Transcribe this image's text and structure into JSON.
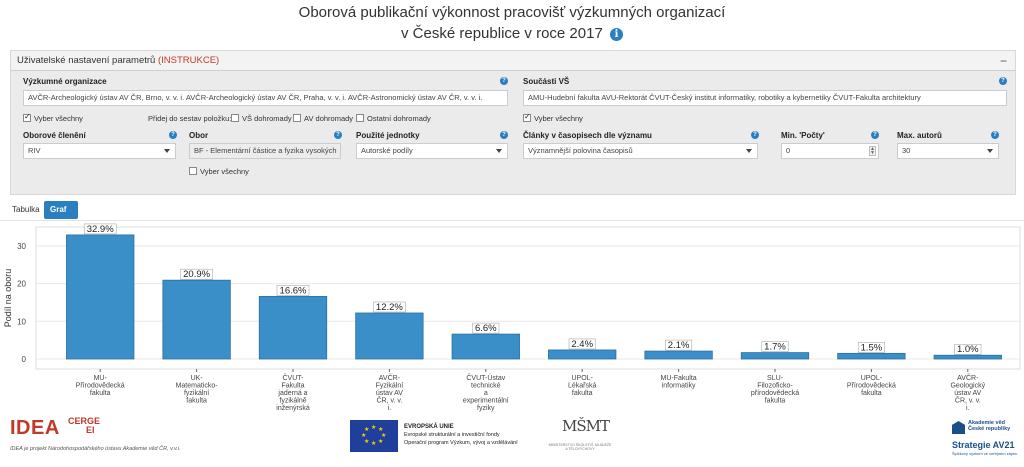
{
  "title": {
    "line1": "Oborová publikační výkonnost pracovišť výzkumných organizací",
    "line2": "v České republice v roce 2017"
  },
  "settings": {
    "header_label": "Uživatelské nastavení parametrů",
    "header_link": "(INSTRUKCE)",
    "collapse_symbol": "−",
    "research_orgs": {
      "label": "Výzkumné organizace",
      "value": "AVČR-Archeologický ústav AV ČR, Brno, v. v. i.  AVČR-Archeologický ústav AV ČR, Praha, v. v. i.  AVČR-Astronomický ústav AV ČR, v. v. i."
    },
    "university_parts": {
      "label": "Součásti VŠ",
      "value": "AMU-Hudební fakulta  AVU-Rektorát  ČVUT-Český institut informatiky, robotiky a kybernetiky  ČVUT-Fakulta architektury"
    },
    "select_all_label": "Vyber všechny",
    "add_label": "Přidej do sestav položku:",
    "checkboxes": [
      "VŠ dohromady",
      "AV dohromady",
      "Ostatní dohromady"
    ],
    "field_division": {
      "label": "Oborové členění",
      "value": "RIV"
    },
    "field": {
      "label": "Obor",
      "value": "BF - Elementární částice a fyzika vysokých"
    },
    "field_select_all": "Vyber všechny",
    "units": {
      "label": "Použité jednotky",
      "value": "Autorské podíly"
    },
    "journals": {
      "label": "Články v časopisech dle významu",
      "value": "Významnější polovina časopisů"
    },
    "min_count": {
      "label": "Min. 'Počty'",
      "value": "0"
    },
    "max_authors": {
      "label": "Max. autorů",
      "value": "30"
    }
  },
  "tabs": [
    {
      "label": "Tabulka",
      "active": false
    },
    {
      "label": "Graf (bars)",
      "active": true
    }
  ],
  "chart_data": {
    "type": "bar",
    "ylabel": "Podíl na oboru",
    "ylim": [
      0,
      35
    ],
    "yticks": [
      0,
      10,
      20,
      30
    ],
    "grid": true,
    "bar_color": "#3a8fc8",
    "categories": [
      [
        "MU-",
        "Přírodovědecká",
        "fakulta"
      ],
      [
        "UK-",
        "Matematicko-",
        "fyzikální",
        "fakulta"
      ],
      [
        "ČVUT-",
        "Fakulta",
        "jaderná a",
        "fyzikálně",
        "inženýrská"
      ],
      [
        "AVČR-",
        "Fyzikální",
        "ústav AV",
        "ČR, v. v.",
        "i."
      ],
      [
        "ČVUT-Ústav",
        "technické",
        "a",
        "experimentální",
        "fyziky"
      ],
      [
        "UPOL-",
        "Lékařská",
        "fakulta"
      ],
      [
        "MU-Fakulta",
        "informatiky"
      ],
      [
        "SLU-",
        "Filozoficko-",
        "přírodovědecká",
        "fakulta"
      ],
      [
        "UPOL-",
        "Přírodovědecká",
        "fakulta"
      ],
      [
        "AVČR-",
        "Geologický",
        "ústav AV",
        "ČR, v. v.",
        "i."
      ]
    ],
    "values": [
      32.9,
      20.9,
      16.6,
      12.2,
      6.6,
      2.4,
      2.1,
      1.7,
      1.5,
      1.0
    ],
    "data_labels": [
      "32.9%",
      "20.9%",
      "16.6%",
      "12.2%",
      "6.6%",
      "2.4%",
      "2.1%",
      "1.7%",
      "1.5%",
      "1.0%"
    ]
  },
  "footer": {
    "idea_main": "IDEA",
    "idea_cerge": "CERGE",
    "idea_ei": "EI",
    "idea_note": "IDEA je projekt Národohospodářského ústavu Akademie věd ČR, v.v.i.",
    "eu_line1": "EVROPSKÁ UNIE",
    "eu_line2": "Evropské strukturální a investiční fondy",
    "eu_line3": "Operační program Výzkum, vývoj a vzdělávání",
    "msmt_mark": "MŠMT",
    "msmt_text": "MINISTERSTVO ŠKOLSTVÍ, MLÁDEŽE A TĚLOVÝCHOVY",
    "av_line1": "Akademie věd",
    "av_line2": "České republiky",
    "av_strategy": "Strategie AV21",
    "av_tagline": "Špičkový výzkum ve veřejném zájmu"
  }
}
